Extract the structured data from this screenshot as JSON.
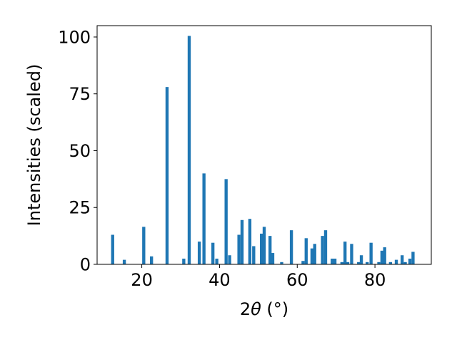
{
  "chart_data": {
    "type": "bar",
    "xlabel_prefix": "2",
    "xlabel_symbol": "θ",
    "xlabel_suffix": " (°)",
    "ylabel": "Intensities (scaled)",
    "xlim": [
      8.5,
      94.5
    ],
    "ylim": [
      0,
      105
    ],
    "xticks": [
      20,
      40,
      60,
      80
    ],
    "yticks": [
      0,
      25,
      50,
      75,
      100
    ],
    "bar_color": "#1f77b4",
    "bar_width": 0.8,
    "grid": false,
    "x": [
      12.5,
      15.5,
      20.5,
      22.5,
      26.5,
      30.8,
      32.2,
      34.8,
      36.0,
      38.3,
      39.3,
      41.7,
      42.6,
      45.0,
      45.8,
      47.8,
      48.8,
      50.8,
      51.5,
      53.0,
      53.7,
      56.0,
      58.5,
      61.5,
      62.3,
      63.8,
      64.5,
      66.5,
      67.3,
      69.0,
      69.7,
      71.5,
      72.3,
      73.0,
      74.0,
      75.8,
      76.5,
      78.0,
      79.0,
      81.0,
      81.8,
      82.5,
      84.0,
      85.5,
      87.0,
      87.8,
      89.0,
      89.8
    ],
    "values": [
      13,
      2,
      16.5,
      3.5,
      78,
      2.5,
      100.5,
      10,
      40,
      9.5,
      2.5,
      37.5,
      4,
      13,
      19.5,
      20,
      8,
      13.5,
      16.5,
      12.5,
      5,
      1,
      15,
      1.5,
      11.5,
      7,
      9,
      12.5,
      15,
      2.5,
      2.5,
      1,
      10,
      1,
      9,
      1,
      4,
      1,
      9.5,
      1,
      6,
      7.5,
      1,
      2,
      4,
      1,
      2.5,
      5.5
    ]
  }
}
